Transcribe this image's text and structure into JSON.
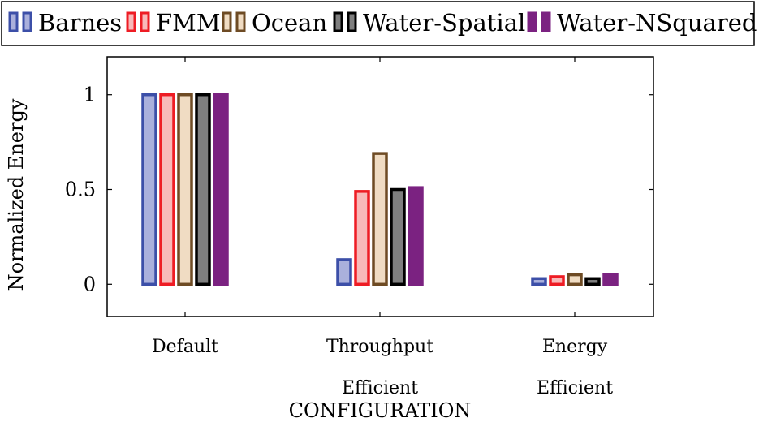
{
  "chart_data": {
    "type": "bar",
    "title": "",
    "xlabel": "CONFIGURATION",
    "ylabel": "Normalized Energy",
    "ylim": [
      -0.17,
      1.2
    ],
    "yticks": [
      {
        "value": 0,
        "label": "0"
      },
      {
        "value": 0.5,
        "label": "0.5"
      },
      {
        "value": 1,
        "label": "1"
      }
    ],
    "categories": [
      {
        "line1": "Default",
        "line2": ""
      },
      {
        "line1": "Throughput",
        "line2": "Efficient"
      },
      {
        "line1": "Energy",
        "line2": "Efficient"
      }
    ],
    "series": [
      {
        "name": "Barnes",
        "values": [
          1.0,
          0.13,
          0.03
        ],
        "stroke": "#3c4fa8",
        "fill": "#aab0dc"
      },
      {
        "name": "FMM",
        "values": [
          1.0,
          0.49,
          0.04
        ],
        "stroke": "#ee1c24",
        "fill": "#f8b9b9"
      },
      {
        "name": "Ocean",
        "values": [
          1.0,
          0.69,
          0.05
        ],
        "stroke": "#6e4b24",
        "fill": "#f0dcc3"
      },
      {
        "name": "Water-Spatial",
        "values": [
          1.0,
          0.5,
          0.03
        ],
        "stroke": "#000000",
        "fill": "#7f7f7f"
      },
      {
        "name": "Water-NSquared",
        "values": [
          1.0,
          0.51,
          0.05
        ],
        "stroke": "#7b2281",
        "fill": "#7b2281"
      }
    ],
    "grid": false,
    "legend_position": "top"
  }
}
